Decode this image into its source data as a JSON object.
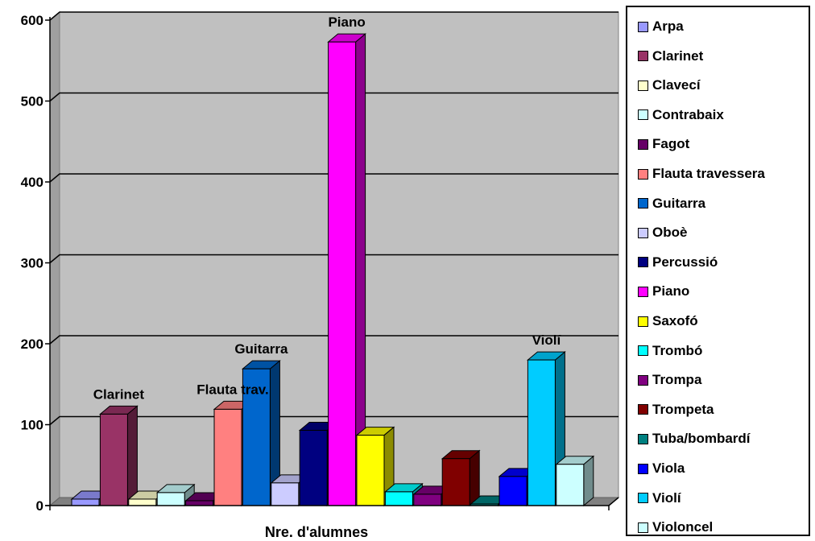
{
  "chart_data": {
    "type": "bar",
    "xlabel": "Nre. d'alumnes",
    "ylim": [
      0,
      600
    ],
    "yticks": [
      0,
      100,
      200,
      300,
      400,
      500,
      600
    ],
    "grid": true,
    "legend_position": "right",
    "series": [
      {
        "name": "Arpa",
        "value": 8,
        "color": "#9999ff",
        "label": ""
      },
      {
        "name": "Clarinet",
        "value": 113,
        "color": "#993366",
        "label": "Clarinet"
      },
      {
        "name": "Clavecí",
        "value": 8,
        "color": "#ffffcc",
        "label": ""
      },
      {
        "name": "Contrabaix",
        "value": 16,
        "color": "#ccffff",
        "label": ""
      },
      {
        "name": "Fagot",
        "value": 6,
        "color": "#660066",
        "label": ""
      },
      {
        "name": "Flauta travessera",
        "value": 119,
        "color": "#ff8080",
        "label": "Flauta trav."
      },
      {
        "name": "Guitarra",
        "value": 169,
        "color": "#0066cc",
        "label": "Guitarra"
      },
      {
        "name": "Oboè",
        "value": 28,
        "color": "#ccccff",
        "label": ""
      },
      {
        "name": "Percussió",
        "value": 93,
        "color": "#000080",
        "label": ""
      },
      {
        "name": "Piano",
        "value": 573,
        "color": "#ff00ff",
        "label": "Piano"
      },
      {
        "name": "Saxofó",
        "value": 87,
        "color": "#ffff00",
        "label": ""
      },
      {
        "name": "Trombó",
        "value": 17,
        "color": "#00ffff",
        "label": ""
      },
      {
        "name": "Trompa",
        "value": 14,
        "color": "#800080",
        "label": ""
      },
      {
        "name": "Trompeta",
        "value": 58,
        "color": "#800000",
        "label": ""
      },
      {
        "name": "Tuba/bombardí",
        "value": 2,
        "color": "#008080",
        "label": ""
      },
      {
        "name": "Viola",
        "value": 36,
        "color": "#0000ff",
        "label": ""
      },
      {
        "name": "Violí",
        "value": 180,
        "color": "#00ccff",
        "label": "Violí"
      },
      {
        "name": "Violoncel",
        "value": 51,
        "color": "#ccffff",
        "label": ""
      }
    ]
  }
}
